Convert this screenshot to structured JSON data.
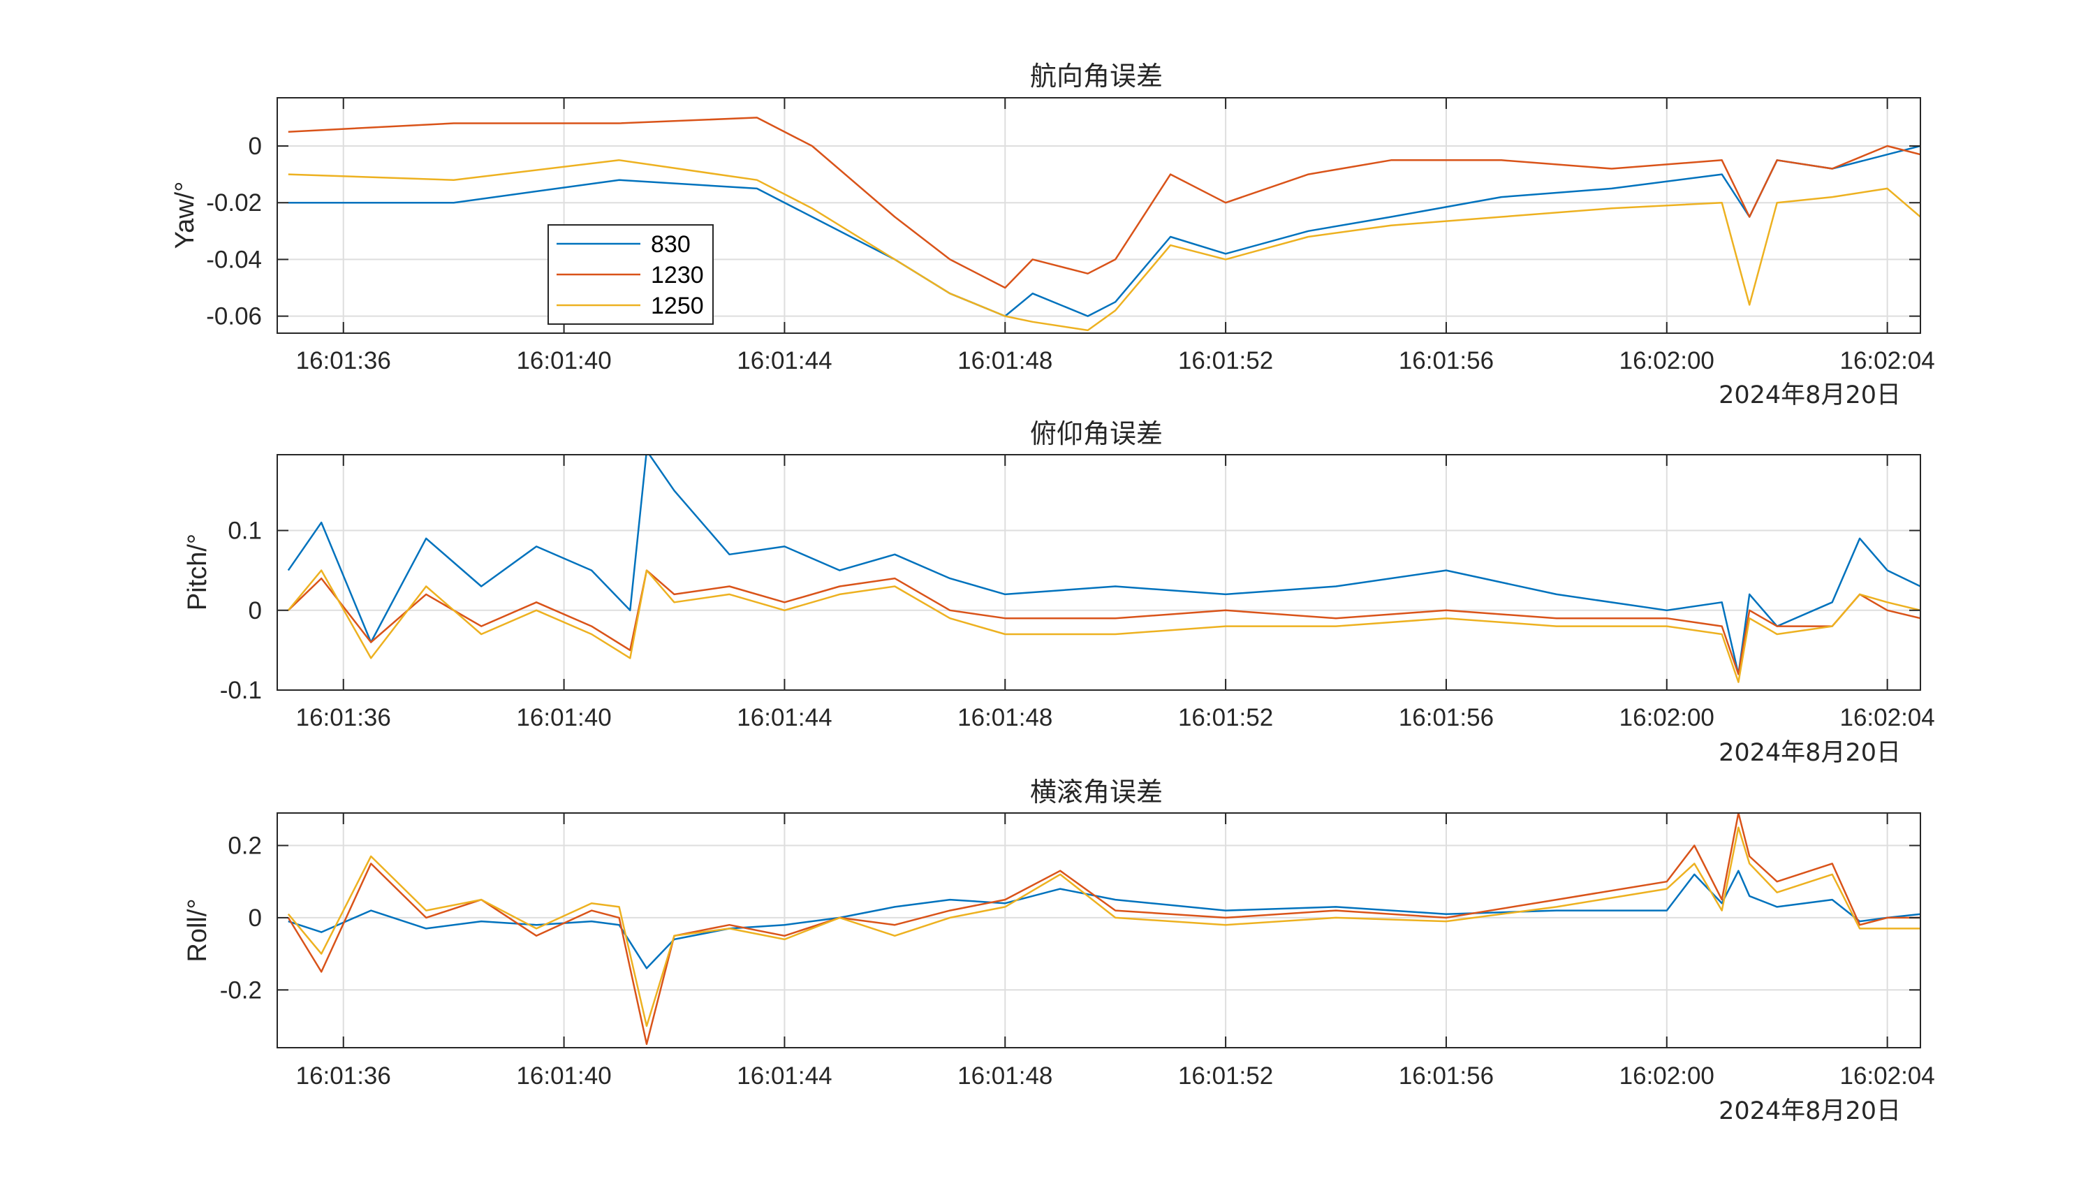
{
  "colors": {
    "830": "#0072BD",
    "1230": "#D95319",
    "1250": "#EDB120"
  },
  "legend": [
    "830",
    "1230",
    "1250"
  ],
  "xticks": [
    "16:01:36",
    "16:01:40",
    "16:01:44",
    "16:01:48",
    "16:01:52",
    "16:01:56",
    "16:02:00",
    "16:02:04"
  ],
  "date_label": "2024年8月20日",
  "chart_data": [
    {
      "type": "line",
      "title": "航向角误差",
      "ylabel": "Yaw/°",
      "xlim": [
        34.8,
        64.6
      ],
      "ylim": [
        -0.066,
        0.017
      ],
      "yticks": [
        0,
        -0.02,
        -0.04,
        -0.06
      ],
      "ytick_labels": [
        "0",
        "-0.02",
        "-0.04",
        "-0.06"
      ],
      "x_unit": "seconds after 16:01:00",
      "x": [
        35.0,
        38.0,
        41.0,
        43.5,
        44.5,
        46.0,
        47.0,
        48.0,
        48.5,
        49.5,
        50.0,
        51.0,
        52.0,
        53.5,
        55.0,
        57.0,
        59.0,
        61.0,
        61.5,
        62.0,
        63.0,
        64.0,
        64.6
      ],
      "series": [
        {
          "name": "830",
          "values": [
            -0.02,
            -0.02,
            -0.012,
            -0.015,
            -0.025,
            -0.04,
            -0.052,
            -0.06,
            -0.052,
            -0.06,
            -0.055,
            -0.032,
            -0.038,
            -0.03,
            -0.025,
            -0.018,
            -0.015,
            -0.01,
            -0.025,
            -0.005,
            -0.008,
            -0.003,
            0.0
          ]
        },
        {
          "name": "1230",
          "values": [
            0.005,
            0.008,
            0.008,
            0.01,
            0.0,
            -0.025,
            -0.04,
            -0.05,
            -0.04,
            -0.045,
            -0.04,
            -0.01,
            -0.02,
            -0.01,
            -0.005,
            -0.005,
            -0.008,
            -0.005,
            -0.025,
            -0.005,
            -0.008,
            0.0,
            -0.003
          ]
        },
        {
          "name": "1250",
          "values": [
            -0.01,
            -0.012,
            -0.005,
            -0.012,
            -0.022,
            -0.04,
            -0.052,
            -0.06,
            -0.062,
            -0.065,
            -0.058,
            -0.035,
            -0.04,
            -0.032,
            -0.028,
            -0.025,
            -0.022,
            -0.02,
            -0.056,
            -0.02,
            -0.018,
            -0.015,
            -0.025
          ]
        }
      ]
    },
    {
      "type": "line",
      "title": "俯仰角误差",
      "ylabel": "Pitch/°",
      "xlim": [
        34.8,
        64.6
      ],
      "ylim": [
        -0.1,
        0.195
      ],
      "yticks": [
        0.1,
        0,
        -0.1
      ],
      "ytick_labels": [
        "0.1",
        "0",
        "-0.1"
      ],
      "x_unit": "seconds after 16:01:00",
      "x": [
        35.0,
        35.6,
        36.5,
        37.5,
        38.5,
        39.5,
        40.5,
        41.2,
        41.5,
        42.0,
        43.0,
        44.0,
        45.0,
        46.0,
        47.0,
        48.0,
        50.0,
        52.0,
        54.0,
        56.0,
        58.0,
        60.0,
        61.0,
        61.3,
        61.5,
        62.0,
        63.0,
        63.5,
        64.0,
        64.6
      ],
      "series": [
        {
          "name": "830",
          "values": [
            0.05,
            0.11,
            -0.04,
            0.09,
            0.03,
            0.08,
            0.05,
            0.0,
            0.2,
            0.15,
            0.07,
            0.08,
            0.05,
            0.07,
            0.04,
            0.02,
            0.03,
            0.02,
            0.03,
            0.05,
            0.02,
            0.0,
            0.01,
            -0.08,
            0.02,
            -0.02,
            0.01,
            0.09,
            0.05,
            0.03
          ]
        },
        {
          "name": "1230",
          "values": [
            0.0,
            0.04,
            -0.04,
            0.02,
            -0.02,
            0.01,
            -0.02,
            -0.05,
            0.05,
            0.02,
            0.03,
            0.01,
            0.03,
            0.04,
            0.0,
            -0.01,
            -0.01,
            0.0,
            -0.01,
            0.0,
            -0.01,
            -0.01,
            -0.02,
            -0.08,
            0.0,
            -0.02,
            -0.02,
            0.02,
            0.0,
            -0.01
          ]
        },
        {
          "name": "1250",
          "values": [
            0.0,
            0.05,
            -0.06,
            0.03,
            -0.03,
            0.0,
            -0.03,
            -0.06,
            0.05,
            0.01,
            0.02,
            0.0,
            0.02,
            0.03,
            -0.01,
            -0.03,
            -0.03,
            -0.02,
            -0.02,
            -0.01,
            -0.02,
            -0.02,
            -0.03,
            -0.09,
            -0.01,
            -0.03,
            -0.02,
            0.02,
            0.01,
            0.0
          ]
        }
      ]
    },
    {
      "type": "line",
      "title": "横滚角误差",
      "ylabel": "Roll/°",
      "xlim": [
        34.8,
        64.6
      ],
      "ylim": [
        -0.36,
        0.29
      ],
      "yticks": [
        0.2,
        0,
        -0.2
      ],
      "ytick_labels": [
        "0.2",
        "0",
        "-0.2"
      ],
      "x_unit": "seconds after 16:01:00",
      "x": [
        35.0,
        35.6,
        36.5,
        37.5,
        38.5,
        39.5,
        40.5,
        41.0,
        41.5,
        42.0,
        43.0,
        44.0,
        45.0,
        46.0,
        47.0,
        48.0,
        49.0,
        50.0,
        52.0,
        54.0,
        56.0,
        58.0,
        60.0,
        60.5,
        61.0,
        61.3,
        61.5,
        62.0,
        63.0,
        63.5,
        64.0,
        64.6
      ],
      "series": [
        {
          "name": "830",
          "values": [
            -0.01,
            -0.04,
            0.02,
            -0.03,
            -0.01,
            -0.02,
            -0.01,
            -0.02,
            -0.14,
            -0.06,
            -0.03,
            -0.02,
            0.0,
            0.03,
            0.05,
            0.04,
            0.08,
            0.05,
            0.02,
            0.03,
            0.01,
            0.02,
            0.02,
            0.12,
            0.04,
            0.13,
            0.06,
            0.03,
            0.05,
            -0.01,
            0.0,
            0.01
          ]
        },
        {
          "name": "1230",
          "values": [
            0.0,
            -0.15,
            0.15,
            0.0,
            0.05,
            -0.05,
            0.02,
            0.0,
            -0.35,
            -0.05,
            -0.02,
            -0.05,
            0.0,
            -0.02,
            0.02,
            0.05,
            0.13,
            0.02,
            0.0,
            0.02,
            0.0,
            0.05,
            0.1,
            0.2,
            0.05,
            0.29,
            0.17,
            0.1,
            0.15,
            -0.02,
            0.0,
            0.0
          ]
        },
        {
          "name": "1250",
          "values": [
            0.01,
            -0.1,
            0.17,
            0.02,
            0.05,
            -0.03,
            0.04,
            0.03,
            -0.3,
            -0.05,
            -0.03,
            -0.06,
            0.0,
            -0.05,
            0.0,
            0.03,
            0.12,
            0.0,
            -0.02,
            0.0,
            -0.01,
            0.03,
            0.08,
            0.15,
            0.02,
            0.25,
            0.15,
            0.07,
            0.12,
            -0.03,
            -0.03,
            -0.03
          ]
        }
      ]
    }
  ]
}
